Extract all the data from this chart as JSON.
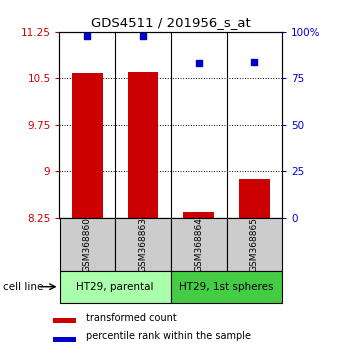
{
  "title": "GDS4511 / 201956_s_at",
  "samples": [
    "GSM368860",
    "GSM368863",
    "GSM368864",
    "GSM368865"
  ],
  "bar_values": [
    10.58,
    10.6,
    8.35,
    8.88
  ],
  "dot_values": [
    98,
    98,
    83,
    84
  ],
  "ylim_left": [
    8.25,
    11.25
  ],
  "ylim_right": [
    0,
    100
  ],
  "yticks_left": [
    8.25,
    9.0,
    9.75,
    10.5,
    11.25
  ],
  "ytick_labels_left": [
    "8.25",
    "9",
    "9.75",
    "10.5",
    "11.25"
  ],
  "yticks_right": [
    0,
    25,
    50,
    75,
    100
  ],
  "ytick_labels_right": [
    "0",
    "25",
    "50",
    "75",
    "100%"
  ],
  "bar_color": "#cc0000",
  "dot_color": "#0000cc",
  "bar_bottom": 8.25,
  "groups": [
    {
      "label": "HT29, parental",
      "samples": [
        0,
        1
      ],
      "color": "#aaffaa"
    },
    {
      "label": "HT29, 1st spheres",
      "samples": [
        2,
        3
      ],
      "color": "#44cc44"
    }
  ],
  "cell_line_label": "cell line",
  "legend_bar_label": "transformed count",
  "legend_dot_label": "percentile rank within the sample",
  "bar_width": 0.55,
  "sample_box_color": "#cccccc"
}
